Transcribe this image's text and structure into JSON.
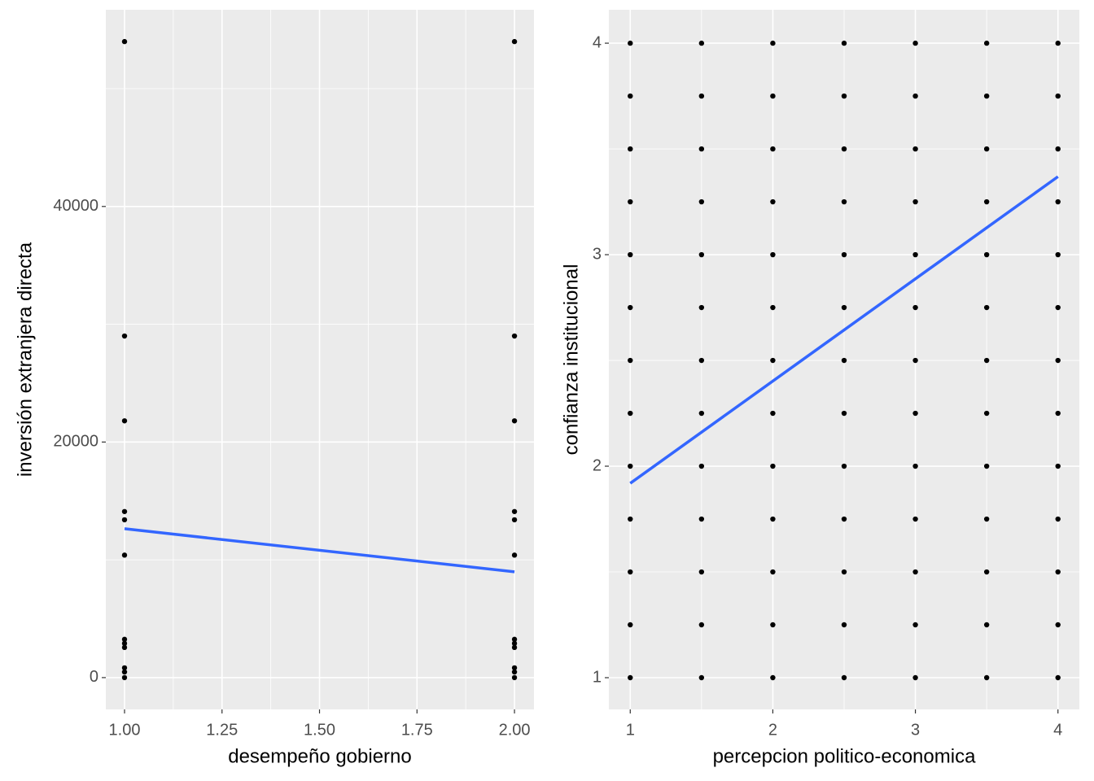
{
  "chart_data": [
    {
      "type": "scatter",
      "x_label": "desempeño gobierno",
      "y_label": "inversión extranjera directa",
      "xlim": [
        0.952,
        2.05
      ],
      "ylim": [
        -2700,
        56700
      ],
      "xticks": [
        {
          "value": 1,
          "label": "1.00"
        },
        {
          "value": 1.25,
          "label": "1.25"
        },
        {
          "value": 1.5,
          "label": "1.50"
        },
        {
          "value": 1.75,
          "label": "1.75"
        },
        {
          "value": 2,
          "label": "2.00"
        }
      ],
      "yticks": [
        0,
        20000,
        40000
      ],
      "grid": true,
      "color": "#000000",
      "x": [
        1,
        1,
        1,
        1,
        1,
        1,
        1,
        1,
        1,
        1,
        1,
        1,
        2,
        2,
        2,
        2,
        2,
        2,
        2,
        2,
        2,
        2,
        2,
        2
      ],
      "y": [
        54000,
        29000,
        21800,
        14100,
        13400,
        10400,
        3250,
        2900,
        2560,
        830,
        480,
        0,
        54000,
        29000,
        21800,
        14100,
        13400,
        10400,
        3250,
        2900,
        2560,
        830,
        480,
        0
      ],
      "trend": {
        "x": [
          1,
          2
        ],
        "y": [
          12640,
          8980
        ],
        "color": "#3366FF"
      }
    },
    {
      "type": "scatter",
      "x_label": "percepcion politico-economica",
      "y_label": "confianza institucional",
      "xlim": [
        0.85,
        4.15
      ],
      "ylim": [
        0.85,
        4.158
      ],
      "xticks": [
        1,
        2,
        3,
        4
      ],
      "yticks": [
        1,
        2,
        3,
        4
      ],
      "grid": true,
      "color": "#000000",
      "x": [
        1,
        1,
        1,
        1,
        1,
        1,
        1,
        1,
        1,
        1,
        1,
        1,
        1,
        1.5,
        1.5,
        1.5,
        1.5,
        1.5,
        1.5,
        1.5,
        1.5,
        1.5,
        1.5,
        1.5,
        1.5,
        1.5,
        2,
        2,
        2,
        2,
        2,
        2,
        2,
        2,
        2,
        2,
        2,
        2,
        2,
        2.5,
        2.5,
        2.5,
        2.5,
        2.5,
        2.5,
        2.5,
        2.5,
        2.5,
        2.5,
        2.5,
        2.5,
        2.5,
        3,
        3,
        3,
        3,
        3,
        3,
        3,
        3,
        3,
        3,
        3,
        3,
        3,
        3.5,
        3.5,
        3.5,
        3.5,
        3.5,
        3.5,
        3.5,
        3.5,
        3.5,
        3.5,
        3.5,
        3.5,
        3.5,
        4,
        4,
        4,
        4,
        4,
        4,
        4,
        4,
        4,
        4,
        4,
        4,
        4
      ],
      "y": [
        1,
        1.25,
        1.5,
        1.75,
        2,
        2.25,
        2.5,
        2.75,
        3,
        3.25,
        3.5,
        3.75,
        4,
        1,
        1.25,
        1.5,
        1.75,
        2,
        2.25,
        2.5,
        2.75,
        3,
        3.25,
        3.5,
        3.75,
        4,
        1,
        1.25,
        1.5,
        1.75,
        2,
        2.25,
        2.5,
        2.75,
        3,
        3.25,
        3.5,
        3.75,
        4,
        1,
        1.25,
        1.5,
        1.75,
        2,
        2.25,
        2.5,
        2.75,
        3,
        3.25,
        3.5,
        3.75,
        4,
        1,
        1.25,
        1.5,
        1.75,
        2,
        2.25,
        2.5,
        2.75,
        3,
        3.25,
        3.5,
        3.75,
        4,
        1,
        1.25,
        1.5,
        1.75,
        2,
        2.25,
        2.5,
        2.75,
        3,
        3.25,
        3.5,
        3.75,
        4,
        1,
        1.25,
        1.5,
        1.75,
        2,
        2.25,
        2.5,
        2.75,
        3,
        3.25,
        3.5,
        3.75,
        4
      ],
      "trend": {
        "x": [
          1,
          4
        ],
        "y": [
          1.919,
          3.369
        ],
        "color": "#3366FF"
      }
    }
  ]
}
